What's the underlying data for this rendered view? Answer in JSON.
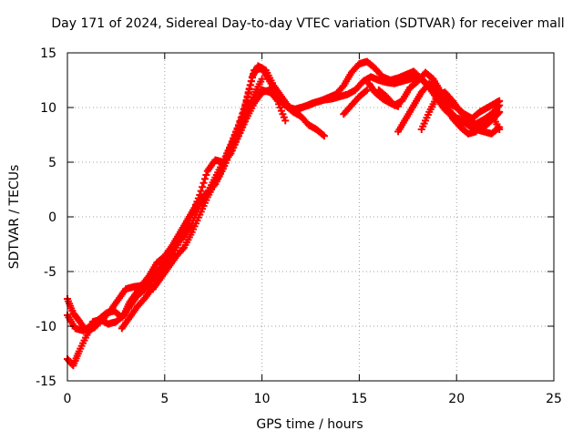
{
  "chart_data": {
    "type": "scatter",
    "title": "Day 171 of 2024, Sidereal Day-to-day VTEC variation (SDTVAR) for receiver mall",
    "xlabel": "GPS time / hours",
    "ylabel": "SDTVAR / TECUs",
    "xlim": [
      0,
      25
    ],
    "ylim": [
      -15,
      15
    ],
    "xticks": [
      0,
      5,
      10,
      15,
      20,
      25
    ],
    "yticks": [
      -15,
      -10,
      -5,
      0,
      5,
      10,
      15
    ],
    "grid": true,
    "marker": "+",
    "color": "#ff0000",
    "series": [
      {
        "name": "trace-1",
        "x": [
          0.0,
          0.3,
          0.6,
          1.0,
          1.3,
          1.7,
          2.1,
          2.5,
          2.9,
          3.2,
          3.6,
          4.0,
          4.4,
          4.8,
          5.2,
          5.6,
          6.0,
          6.4,
          6.8,
          7.2,
          7.6,
          8.0,
          8.4,
          8.8,
          9.2,
          9.5,
          9.8,
          10.2,
          10.6,
          11.0,
          11.4,
          11.8,
          12.2,
          12.6,
          13.0,
          13.4,
          13.8,
          14.2,
          14.6,
          15.0,
          15.4,
          15.8,
          16.2,
          16.6,
          17.0,
          17.4,
          17.8,
          18.2,
          18.6,
          19.0,
          19.4,
          19.8,
          20.2,
          20.6,
          21.0,
          21.4,
          21.8,
          22.2
        ],
        "y": [
          -13.0,
          -13.6,
          -12.3,
          -10.8,
          -9.6,
          -9.4,
          -9.8,
          -9.6,
          -9.0,
          -7.8,
          -6.8,
          -6.2,
          -5.4,
          -4.8,
          -3.8,
          -2.4,
          -1.8,
          -0.6,
          1.0,
          2.2,
          3.6,
          5.0,
          6.6,
          8.4,
          10.5,
          12.8,
          13.8,
          13.4,
          12.0,
          11.0,
          10.0,
          9.8,
          10.1,
          10.4,
          10.6,
          10.9,
          11.2,
          12.0,
          13.2,
          14.0,
          14.2,
          13.6,
          12.8,
          12.5,
          12.7,
          13.0,
          13.3,
          12.6,
          11.8,
          10.8,
          9.8,
          9.2,
          8.9,
          8.6,
          8.5,
          8.9,
          9.4,
          10.2
        ]
      },
      {
        "name": "trace-2",
        "x": [
          0.0,
          0.3,
          0.6,
          1.0,
          1.4,
          1.8,
          2.2,
          2.6,
          3.0,
          3.4,
          3.8,
          4.2,
          4.6,
          5.0,
          5.4,
          5.8,
          6.2,
          6.6,
          7.0,
          7.4,
          7.8,
          8.2,
          8.6,
          9.0,
          9.3,
          9.6,
          10.0,
          10.4,
          10.8,
          11.2,
          11.6,
          12.0,
          12.4,
          12.8,
          13.2,
          13.6,
          14.0,
          14.4,
          14.8,
          15.2,
          15.6,
          16.0,
          16.4,
          16.8,
          17.2,
          17.6,
          18.0,
          18.4,
          18.8,
          19.2,
          19.6,
          20.0,
          20.4,
          20.8,
          21.2,
          21.6,
          22.0,
          22.2
        ],
        "y": [
          -7.5,
          -8.8,
          -9.5,
          -10.5,
          -10.1,
          -9.4,
          -8.6,
          -7.6,
          -6.6,
          -6.4,
          -6.3,
          -5.4,
          -4.2,
          -3.6,
          -2.6,
          -1.4,
          -0.2,
          1.0,
          1.8,
          2.6,
          3.8,
          5.6,
          7.4,
          9.2,
          11.4,
          13.4,
          13.6,
          12.4,
          11.2,
          10.2,
          9.8,
          10.0,
          10.2,
          10.5,
          10.7,
          10.8,
          11.0,
          11.2,
          11.6,
          12.4,
          12.8,
          12.5,
          12.3,
          12.2,
          12.4,
          12.6,
          12.8,
          12.3,
          11.6,
          10.8,
          9.8,
          9.0,
          8.6,
          8.2,
          8.0,
          8.5,
          9.2,
          9.6
        ]
      },
      {
        "name": "trace-3",
        "x": [
          0.0,
          0.4,
          0.8,
          1.2,
          1.6,
          2.0,
          2.4,
          2.8,
          3.2,
          3.6,
          4.0,
          4.4,
          4.8,
          5.2,
          5.6,
          6.0,
          6.4,
          6.8,
          7.2,
          7.6,
          8.0,
          8.4,
          8.8,
          9.2,
          9.6,
          10.0,
          10.4,
          10.8,
          11.2,
          11.6,
          12.0,
          12.4,
          12.8,
          13.2
        ],
        "y": [
          -9.0,
          -10.2,
          -10.4,
          -10.0,
          -9.4,
          -8.8,
          -8.6,
          -9.2,
          -8.2,
          -7.2,
          -6.6,
          -5.6,
          -4.6,
          -3.4,
          -2.2,
          -1.0,
          0.4,
          1.6,
          2.2,
          3.0,
          4.4,
          6.0,
          7.6,
          9.2,
          10.8,
          11.6,
          11.4,
          10.8,
          10.2,
          9.6,
          9.2,
          8.4,
          8.0,
          7.4
        ]
      },
      {
        "name": "trace-4",
        "x": [
          2.8,
          3.2,
          3.6,
          4.0,
          4.4,
          4.8,
          5.2,
          5.6,
          6.0,
          6.4,
          6.8,
          7.2,
          7.6,
          8.0,
          8.4,
          8.8,
          9.2,
          9.6,
          10.0,
          10.4,
          10.8,
          11.2
        ],
        "y": [
          -10.2,
          -9.2,
          -8.2,
          -7.4,
          -6.4,
          -5.0,
          -4.4,
          -2.8,
          -1.4,
          0.2,
          2.0,
          4.2,
          5.2,
          5.0,
          5.8,
          7.4,
          9.0,
          10.4,
          11.4,
          11.6,
          10.6,
          8.8
        ]
      },
      {
        "name": "trace-5",
        "x": [
          4.4,
          4.8,
          5.2,
          5.6,
          6.0,
          6.4,
          6.8,
          7.2,
          7.6,
          8.0,
          8.4,
          8.8,
          9.2,
          9.6,
          10.0
        ],
        "y": [
          -6.6,
          -5.6,
          -4.6,
          -3.6,
          -2.8,
          -1.4,
          0.2,
          1.8,
          3.2,
          4.6,
          6.4,
          8.0,
          9.6,
          11.2,
          12.6
        ]
      },
      {
        "name": "trace-6",
        "x": [
          16.0,
          16.4,
          16.8,
          17.2,
          17.6,
          18.0,
          18.4,
          18.8,
          19.2,
          19.6,
          20.0,
          20.4,
          20.8,
          21.2,
          21.6,
          22.0,
          22.2
        ],
        "y": [
          11.6,
          11.0,
          10.2,
          10.6,
          11.8,
          12.4,
          13.2,
          12.6,
          11.4,
          10.4,
          10.0,
          9.4,
          9.0,
          9.6,
          10.0,
          10.4,
          10.6
        ]
      },
      {
        "name": "trace-7",
        "x": [
          15.5,
          15.8,
          16.2,
          16.6,
          17.0
        ],
        "y": [
          12.2,
          11.4,
          10.8,
          10.4,
          10.1
        ]
      },
      {
        "name": "trace-8",
        "x": [
          17.0,
          17.4,
          17.8,
          18.2,
          18.6,
          19.0,
          19.4,
          19.8,
          20.2,
          20.6,
          21.0,
          21.4,
          21.8,
          22.2
        ],
        "y": [
          7.8,
          9.0,
          10.2,
          11.4,
          12.2,
          11.6,
          10.2,
          9.0,
          8.2,
          7.6,
          7.8,
          8.6,
          9.4,
          8.0
        ]
      },
      {
        "name": "trace-9",
        "x": [
          18.2,
          18.6,
          19.0,
          19.4,
          19.8,
          20.2,
          20.6,
          21.0,
          21.4,
          21.8,
          22.2
        ],
        "y": [
          8.0,
          9.6,
          11.0,
          11.4,
          10.6,
          9.6,
          8.8,
          8.0,
          7.8,
          7.6,
          8.2
        ]
      },
      {
        "name": "trace-10",
        "x": [
          14.2,
          14.6,
          15.0,
          15.4
        ],
        "y": [
          9.4,
          10.2,
          11.0,
          11.6
        ]
      }
    ]
  }
}
